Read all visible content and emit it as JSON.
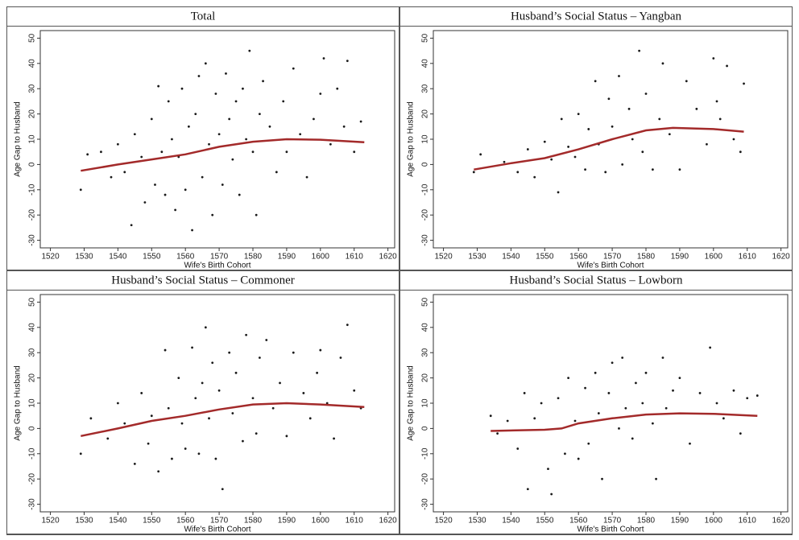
{
  "chart_data": [
    {
      "type": "scatter",
      "title": "Total",
      "x_label": "Wife's Birth Cohort",
      "y_label": "Age Gap to Husband",
      "xlim": [
        1517,
        1622
      ],
      "ylim": [
        -33,
        53
      ],
      "xticks": [
        1520,
        1530,
        1540,
        1550,
        1560,
        1570,
        1580,
        1590,
        1600,
        1610,
        1620
      ],
      "yticks": [
        -30,
        -20,
        -10,
        0,
        10,
        20,
        30,
        40,
        50
      ],
      "series": [
        {
          "color": "#1a1a1a",
          "x": [
            1529,
            1531,
            1535,
            1538,
            1540,
            1542,
            1544,
            1545,
            1547,
            1548,
            1550,
            1551,
            1552,
            1553,
            1554,
            1555,
            1556,
            1557,
            1558,
            1559,
            1560,
            1561,
            1562,
            1563,
            1564,
            1565,
            1566,
            1567,
            1568,
            1569,
            1570,
            1571,
            1572,
            1573,
            1574,
            1575,
            1576,
            1577,
            1578,
            1579,
            1580,
            1581,
            1582,
            1583,
            1585,
            1587,
            1589,
            1590,
            1592,
            1594,
            1596,
            1598,
            1600,
            1601,
            1603,
            1605,
            1607,
            1608,
            1610,
            1612
          ],
          "values": [
            -10,
            4,
            5,
            -5,
            8,
            -3,
            -24,
            12,
            3,
            -15,
            18,
            -8,
            31,
            5,
            -12,
            25,
            10,
            -18,
            3,
            30,
            -10,
            15,
            -26,
            20,
            35,
            -5,
            40,
            8,
            -20,
            28,
            12,
            -8,
            36,
            18,
            2,
            25,
            -12,
            30,
            10,
            45,
            5,
            -20,
            20,
            33,
            15,
            -3,
            25,
            5,
            38,
            12,
            -5,
            18,
            28,
            42,
            8,
            30,
            15,
            41,
            5,
            17
          ]
        },
        {
          "type": "line",
          "color": "#a32a2a",
          "x": [
            1529,
            1540,
            1550,
            1560,
            1570,
            1580,
            1590,
            1600,
            1613
          ],
          "values": [
            -2.5,
            0,
            2,
            4,
            7,
            9,
            10,
            9.8,
            8.8
          ]
        }
      ]
    },
    {
      "type": "scatter",
      "title": "Husband’s Social Status – Yangban",
      "x_label": "Wife's Birth Cohort",
      "y_label": "Age Gap to Husband",
      "xlim": [
        1517,
        1622
      ],
      "ylim": [
        -33,
        53
      ],
      "xticks": [
        1520,
        1530,
        1540,
        1550,
        1560,
        1570,
        1580,
        1590,
        1600,
        1610,
        1620
      ],
      "yticks": [
        -30,
        -20,
        -10,
        0,
        10,
        20,
        30,
        40,
        50
      ],
      "series": [
        {
          "color": "#1a1a1a",
          "x": [
            1529,
            1531,
            1538,
            1542,
            1545,
            1547,
            1550,
            1552,
            1554,
            1555,
            1557,
            1559,
            1560,
            1562,
            1563,
            1565,
            1566,
            1568,
            1569,
            1570,
            1572,
            1573,
            1575,
            1576,
            1578,
            1579,
            1580,
            1582,
            1584,
            1585,
            1587,
            1590,
            1592,
            1595,
            1598,
            1600,
            1601,
            1602,
            1604,
            1606,
            1608,
            1609
          ],
          "values": [
            -3,
            4,
            1,
            -3,
            6,
            -5,
            9,
            2,
            -11,
            18,
            7,
            3,
            20,
            -2,
            14,
            33,
            8,
            -3,
            26,
            15,
            35,
            0,
            22,
            10,
            45,
            5,
            28,
            -2,
            18,
            40,
            12,
            -2,
            33,
            22,
            8,
            42,
            25,
            18,
            39,
            10,
            5,
            32
          ]
        },
        {
          "type": "line",
          "color": "#a32a2a",
          "x": [
            1529,
            1540,
            1550,
            1560,
            1570,
            1580,
            1588,
            1600,
            1609
          ],
          "values": [
            -2,
            0.5,
            2.5,
            6,
            10,
            13.5,
            14.5,
            14,
            13
          ]
        }
      ]
    },
    {
      "type": "scatter",
      "title": "Husband’s Social Status – Commoner",
      "x_label": "Wife's Birth Cohort",
      "y_label": "Age Gap to Husband",
      "xlim": [
        1517,
        1622
      ],
      "ylim": [
        -33,
        53
      ],
      "xticks": [
        1520,
        1530,
        1540,
        1550,
        1560,
        1570,
        1580,
        1590,
        1600,
        1610,
        1620
      ],
      "yticks": [
        -30,
        -20,
        -10,
        0,
        10,
        20,
        30,
        40,
        50
      ],
      "series": [
        {
          "color": "#1a1a1a",
          "x": [
            1529,
            1532,
            1537,
            1540,
            1542,
            1545,
            1547,
            1549,
            1550,
            1552,
            1554,
            1555,
            1556,
            1558,
            1559,
            1560,
            1562,
            1563,
            1564,
            1565,
            1566,
            1567,
            1568,
            1569,
            1570,
            1571,
            1573,
            1574,
            1575,
            1577,
            1578,
            1580,
            1581,
            1582,
            1584,
            1586,
            1588,
            1590,
            1592,
            1595,
            1597,
            1599,
            1600,
            1602,
            1604,
            1606,
            1608,
            1610,
            1612
          ],
          "values": [
            -10,
            4,
            -4,
            10,
            2,
            -14,
            14,
            -6,
            5,
            -17,
            31,
            8,
            -12,
            20,
            2,
            -8,
            32,
            12,
            -10,
            18,
            40,
            4,
            26,
            -12,
            15,
            -24,
            30,
            6,
            22,
            -5,
            37,
            12,
            -2,
            28,
            35,
            8,
            18,
            -3,
            30,
            14,
            4,
            22,
            31,
            10,
            -4,
            28,
            41,
            15,
            8
          ]
        },
        {
          "type": "line",
          "color": "#a32a2a",
          "x": [
            1529,
            1540,
            1550,
            1560,
            1570,
            1580,
            1590,
            1600,
            1613
          ],
          "values": [
            -3,
            0,
            3,
            5,
            7.5,
            9.5,
            10,
            9.5,
            8.5
          ]
        }
      ]
    },
    {
      "type": "scatter",
      "title": "Husband’s Social Status – Lowborn",
      "x_label": "Wife's Birth Cohort",
      "y_label": "Age Gap to Husband",
      "xlim": [
        1517,
        1622
      ],
      "ylim": [
        -33,
        53
      ],
      "xticks": [
        1520,
        1530,
        1540,
        1550,
        1560,
        1570,
        1580,
        1590,
        1600,
        1610,
        1620
      ],
      "yticks": [
        -30,
        -20,
        -10,
        0,
        10,
        20,
        30,
        40,
        50
      ],
      "series": [
        {
          "color": "#1a1a1a",
          "x": [
            1534,
            1536,
            1539,
            1542,
            1544,
            1545,
            1547,
            1549,
            1551,
            1552,
            1554,
            1556,
            1557,
            1559,
            1560,
            1562,
            1563,
            1565,
            1566,
            1567,
            1569,
            1570,
            1572,
            1573,
            1574,
            1576,
            1577,
            1579,
            1580,
            1582,
            1583,
            1585,
            1586,
            1588,
            1590,
            1593,
            1596,
            1599,
            1601,
            1603,
            1606,
            1608,
            1610,
            1613
          ],
          "values": [
            5,
            -2,
            3,
            -8,
            14,
            -24,
            4,
            10,
            -16,
            -26,
            12,
            -10,
            20,
            3,
            -12,
            16,
            -6,
            22,
            6,
            -20,
            14,
            26,
            0,
            28,
            8,
            -4,
            18,
            10,
            22,
            2,
            -20,
            28,
            8,
            15,
            20,
            -6,
            14,
            32,
            10,
            4,
            15,
            -2,
            12,
            13
          ]
        },
        {
          "type": "line",
          "color": "#a32a2a",
          "x": [
            1534,
            1550,
            1555,
            1560,
            1570,
            1580,
            1590,
            1600,
            1613
          ],
          "values": [
            -1,
            -0.5,
            0,
            2,
            4,
            5.5,
            6,
            5.8,
            5
          ]
        }
      ]
    }
  ]
}
